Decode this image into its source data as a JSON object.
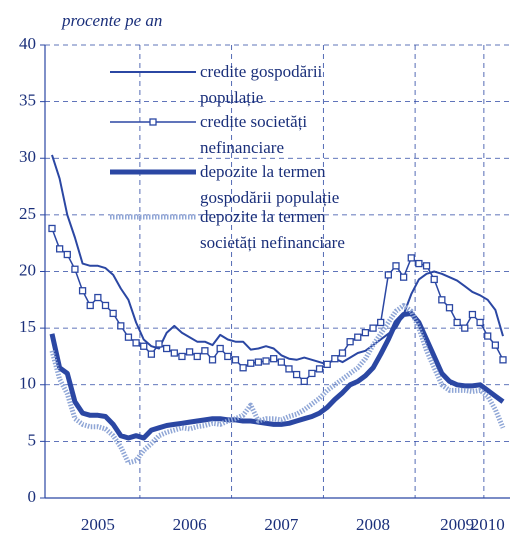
{
  "chart_data": {
    "type": "line",
    "subtitle": "procente pe an",
    "categories": [
      null,
      null,
      null,
      null,
      null,
      null,
      "2005",
      null,
      null,
      null,
      null,
      null,
      null,
      null,
      null,
      null,
      null,
      null,
      "2006",
      null,
      null,
      null,
      null,
      null,
      null,
      null,
      null,
      null,
      null,
      null,
      "2007",
      null,
      null,
      null,
      null,
      null,
      null,
      null,
      null,
      null,
      null,
      null,
      "2008",
      null,
      null,
      null,
      null,
      null,
      null,
      null,
      null,
      null,
      null,
      "2009",
      null,
      null,
      null,
      "2010",
      null,
      null
    ],
    "series": [
      {
        "name": "credite gospodării populație",
        "color": "#2b47a3",
        "style": "thin",
        "values": [
          30.3,
          28.2,
          25,
          23,
          20.7,
          20.5,
          20.5,
          20.3,
          19.7,
          18.5,
          17.5,
          15.5,
          14,
          13.4,
          13.2,
          14.6,
          15.2,
          14.6,
          14.2,
          13.8,
          13.8,
          13.5,
          14.4,
          14,
          13.8,
          13.8,
          13.1,
          13.2,
          13.4,
          13.2,
          12.6,
          12.3,
          12.2,
          12.4,
          12.2,
          12,
          11.8,
          12.3,
          12,
          12.4,
          12.8,
          13,
          13.5,
          14,
          14.5,
          15,
          16.2,
          18,
          19.3,
          19.8,
          20,
          19.8,
          19.5,
          19.2,
          18.7,
          18.2,
          17.9,
          17.5,
          16.6,
          14.3
        ]
      },
      {
        "name": "credite societăți nefinanciare",
        "color": "#2b47a3",
        "style": "markers",
        "values": [
          23.8,
          22,
          21.5,
          20.2,
          18.3,
          17,
          17.7,
          17,
          16.3,
          15.2,
          14.2,
          13.7,
          13.4,
          12.7,
          13.6,
          13.2,
          12.8,
          12.5,
          12.9,
          12.5,
          13,
          12.2,
          13.2,
          12.5,
          12.2,
          11.5,
          11.9,
          12,
          12.1,
          12.3,
          12,
          11.4,
          10.9,
          10.3,
          11,
          11.4,
          11.8,
          12.3,
          12.8,
          13.8,
          14.2,
          14.6,
          15,
          15.5,
          19.7,
          20.5,
          19.5,
          21.2,
          20.7,
          20.5,
          19.3,
          17.5,
          16.8,
          15.5,
          15,
          16.2,
          15.5,
          14.3,
          13.5,
          12.2
        ]
      },
      {
        "name": "depozite la termen gospodării populație",
        "color": "#2b47a3",
        "style": "thick",
        "values": [
          14.5,
          11.5,
          11,
          8.5,
          7.5,
          7.3,
          7.3,
          7.2,
          6.5,
          5.5,
          5.3,
          5.5,
          5.3,
          6,
          6.2,
          6.4,
          6.5,
          6.6,
          6.7,
          6.8,
          6.9,
          7,
          7,
          6.9,
          6.9,
          6.8,
          6.8,
          6.7,
          6.6,
          6.5,
          6.5,
          6.6,
          6.8,
          7,
          7.2,
          7.5,
          8,
          8.7,
          9.3,
          10,
          10.3,
          10.8,
          11.5,
          12.7,
          14,
          15.5,
          16.2,
          16.3,
          15.5,
          14,
          12.5,
          11,
          10.3,
          10,
          9.9,
          9.9,
          10,
          9.5,
          9,
          8.5
        ]
      },
      {
        "name": "depozite la termen societăți nefinanciare",
        "color": "#8fa6d6",
        "style": "dotted",
        "values": [
          13,
          10.5,
          9.2,
          7,
          6.5,
          6.3,
          6.3,
          6.1,
          5.5,
          4.5,
          3.1,
          3.3,
          4.2,
          4.8,
          5.5,
          5.8,
          6,
          6.2,
          6.1,
          6.3,
          6.4,
          6.6,
          6.5,
          6.8,
          7,
          7.3,
          8.2,
          6.8,
          7,
          7,
          6.9,
          7.2,
          7.4,
          7.8,
          8.3,
          8.8,
          9.5,
          10,
          10.5,
          11,
          11.5,
          12.3,
          13.5,
          14.5,
          15.5,
          16.5,
          17,
          16.5,
          15,
          13,
          11.5,
          10,
          9.5,
          9.5,
          9.5,
          9.4,
          9.5,
          9,
          7.8,
          6.2
        ]
      }
    ],
    "ylim": [
      0,
      40
    ],
    "yticks": [
      0,
      5,
      10,
      15,
      20,
      25,
      30,
      35,
      40
    ],
    "grid": true
  }
}
